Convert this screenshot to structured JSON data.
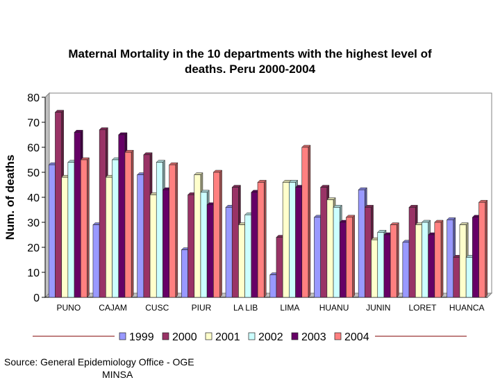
{
  "title_line1": "Maternal Mortality in the 10 departments with the highest level of",
  "title_line2": "deaths. Peru 2000-2004",
  "source_line1": "Source: General Epidemiology Office - OGE",
  "source_line2": "MINSA",
  "chart_data": {
    "type": "bar",
    "title": "Maternal Mortality in the 10 departments with the highest level of deaths. Peru 2000-2004",
    "xlabel": "",
    "ylabel": "Num. of deaths",
    "ylim": [
      0,
      80
    ],
    "yticks": [
      0,
      10,
      20,
      30,
      40,
      50,
      60,
      70,
      80
    ],
    "grid": false,
    "legend_position": "bottom",
    "style": "3d",
    "categories": [
      "PUNO",
      "CAJAM",
      "CUSC",
      "PIUR",
      "LA LIB",
      "LIMA",
      "HUANU",
      "JUNIN",
      "LORET",
      "HUANCA"
    ],
    "series": [
      {
        "name": "1999",
        "color": "#9999ff",
        "values": [
          53,
          29,
          49,
          19,
          36,
          9,
          32,
          43,
          22,
          31
        ]
      },
      {
        "name": "2000",
        "color": "#993366",
        "values": [
          74,
          67,
          57,
          41,
          44,
          24,
          44,
          36,
          36,
          16
        ]
      },
      {
        "name": "2001",
        "color": "#ffffcc",
        "values": [
          48,
          48,
          41,
          49,
          29,
          46,
          39,
          23,
          29,
          29
        ]
      },
      {
        "name": "2002",
        "color": "#ccffff",
        "values": [
          54,
          55,
          54,
          42,
          33,
          46,
          36,
          26,
          30,
          16
        ]
      },
      {
        "name": "2003",
        "color": "#660066",
        "values": [
          66,
          65,
          43,
          37,
          42,
          44,
          30,
          25,
          25,
          32
        ]
      },
      {
        "name": "2004",
        "color": "#ff8080",
        "values": [
          55,
          58,
          53,
          50,
          46,
          60,
          32,
          29,
          30,
          38
        ]
      }
    ]
  }
}
